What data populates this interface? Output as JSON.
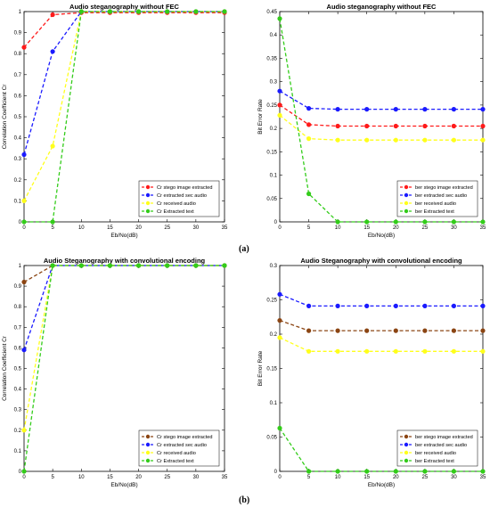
{
  "panel_labels": [
    "(a)",
    "(b)"
  ],
  "chart_data": [
    {
      "type": "line",
      "title": "Audio steganography without FEC",
      "xlabel": "Eb/No(dB)",
      "ylabel": "Correlation Coefficient Cr",
      "x": [
        0,
        5,
        10,
        15,
        20,
        25,
        30,
        35
      ],
      "xlim": [
        0,
        35
      ],
      "ylim": [
        0,
        1
      ],
      "yticks": [
        0,
        0.1,
        0.2,
        0.3,
        0.4,
        0.5,
        0.6,
        0.7,
        0.8,
        0.9,
        1
      ],
      "legend_position": "bottom-right",
      "series": [
        {
          "name": "Cr stego image extracted",
          "color": "#ff1a1a",
          "values": [
            0.83,
            0.985,
            0.995,
            0.995,
            0.995,
            0.995,
            0.995,
            0.995
          ]
        },
        {
          "name": "Cr extracted sec audio",
          "color": "#1a1aff",
          "values": [
            0.32,
            0.81,
            1.0,
            1.0,
            1.0,
            1.0,
            1.0,
            1.0
          ]
        },
        {
          "name": "Cr received audio",
          "color": "#ffff1a",
          "values": [
            0.1,
            0.36,
            1.0,
            1.0,
            1.0,
            1.0,
            1.0,
            1.0
          ]
        },
        {
          "name": "Cr Extracted text",
          "color": "#33cc1a",
          "values": [
            0.0,
            0.0,
            1.0,
            1.0,
            1.0,
            1.0,
            1.0,
            1.0
          ]
        }
      ]
    },
    {
      "type": "line",
      "title": "Audio steganography without FEC",
      "xlabel": "Eb/No(dB)",
      "ylabel": "Bit Error Rate",
      "x": [
        0,
        5,
        10,
        15,
        20,
        25,
        30,
        35
      ],
      "xlim": [
        0,
        35
      ],
      "ylim": [
        0,
        0.45
      ],
      "yticks": [
        0,
        0.05,
        0.1,
        0.15,
        0.2,
        0.25,
        0.3,
        0.35,
        0.4,
        0.45
      ],
      "legend_position": "bottom-right",
      "series": [
        {
          "name": "ber stego image extracted",
          "color": "#ff1a1a",
          "values": [
            0.25,
            0.208,
            0.205,
            0.205,
            0.205,
            0.205,
            0.205,
            0.205
          ]
        },
        {
          "name": "ber extracted sec audio",
          "color": "#1a1aff",
          "values": [
            0.28,
            0.243,
            0.241,
            0.241,
            0.241,
            0.241,
            0.241,
            0.241
          ]
        },
        {
          "name": "ber received audio",
          "color": "#ffff1a",
          "values": [
            0.228,
            0.178,
            0.175,
            0.175,
            0.175,
            0.175,
            0.175,
            0.175
          ]
        },
        {
          "name": "ber Extracted text",
          "color": "#33cc1a",
          "values": [
            0.435,
            0.06,
            0.0,
            0.0,
            0.0,
            0.0,
            0.0,
            0.0
          ]
        }
      ]
    },
    {
      "type": "line",
      "title": "Audio Steganography with convolutional encoding",
      "xlabel": "Eb/No(dB)",
      "ylabel": "Correlation Coefficient Cr",
      "x": [
        0,
        5,
        10,
        15,
        20,
        25,
        30,
        35
      ],
      "xlim": [
        0,
        35
      ],
      "ylim": [
        0,
        1
      ],
      "yticks": [
        0,
        0.1,
        0.2,
        0.3,
        0.4,
        0.5,
        0.6,
        0.7,
        0.8,
        0.9,
        1
      ],
      "legend_position": "bottom-right",
      "series": [
        {
          "name": "Cr stego image extracted",
          "color": "#8b4513",
          "values": [
            0.92,
            1.0,
            1.0,
            1.0,
            1.0,
            1.0,
            1.0,
            1.0
          ]
        },
        {
          "name": "Cr extracted sec audio",
          "color": "#1a1aff",
          "values": [
            0.59,
            1.0,
            1.0,
            1.0,
            1.0,
            1.0,
            1.0,
            1.0
          ]
        },
        {
          "name": "Cr received audio",
          "color": "#ffff1a",
          "values": [
            0.2,
            1.0,
            1.0,
            1.0,
            1.0,
            1.0,
            1.0,
            1.0
          ]
        },
        {
          "name": "Cr Extracted text",
          "color": "#33cc1a",
          "values": [
            0.0,
            1.0,
            1.0,
            1.0,
            1.0,
            1.0,
            1.0,
            1.0
          ]
        }
      ]
    },
    {
      "type": "line",
      "title": "Audio Steganography with convolutional encoding",
      "xlabel": "Eb/No(dB)",
      "ylabel": "Bit Error Rate",
      "x": [
        0,
        5,
        10,
        15,
        20,
        25,
        30,
        35
      ],
      "xlim": [
        0,
        35
      ],
      "ylim": [
        0,
        0.3
      ],
      "yticks": [
        0,
        0.05,
        0.1,
        0.15,
        0.2,
        0.25,
        0.3
      ],
      "legend_position": "bottom-right",
      "series": [
        {
          "name": "ber stego image extracted",
          "color": "#8b4513",
          "values": [
            0.22,
            0.205,
            0.205,
            0.205,
            0.205,
            0.205,
            0.205,
            0.205
          ]
        },
        {
          "name": "ber extracted sec audio",
          "color": "#1a1aff",
          "values": [
            0.258,
            0.241,
            0.241,
            0.241,
            0.241,
            0.241,
            0.241,
            0.241
          ]
        },
        {
          "name": "ber received audio",
          "color": "#ffff1a",
          "values": [
            0.195,
            0.175,
            0.175,
            0.175,
            0.175,
            0.175,
            0.175,
            0.175
          ]
        },
        {
          "name": "ber Extracted text",
          "color": "#33cc1a",
          "values": [
            0.063,
            0.0,
            0.0,
            0.0,
            0.0,
            0.0,
            0.0,
            0.0
          ]
        }
      ]
    }
  ]
}
